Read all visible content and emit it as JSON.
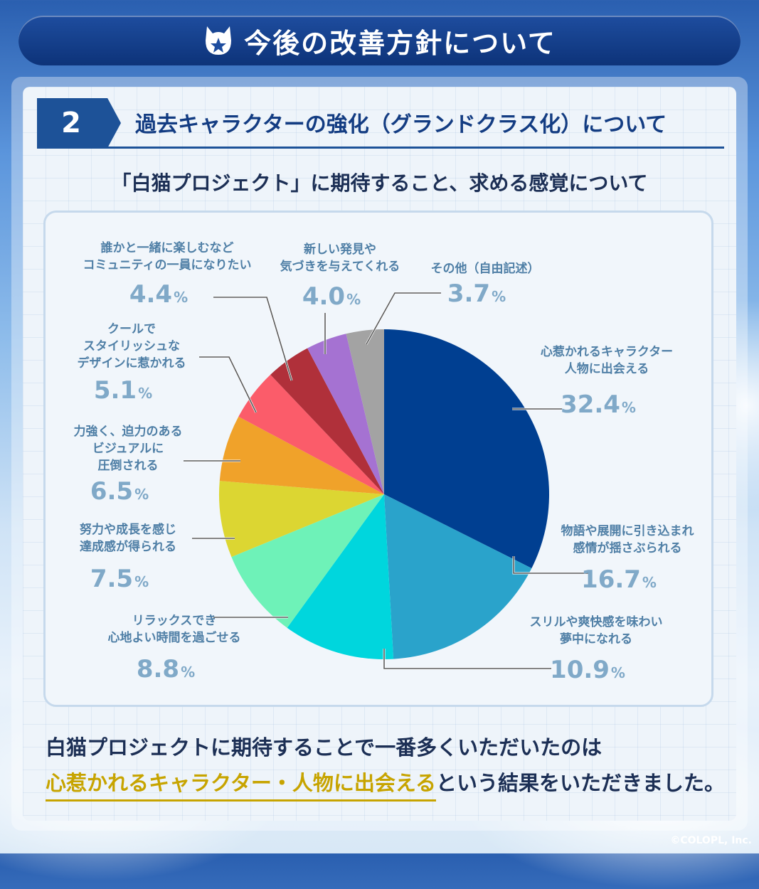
{
  "header": {
    "title": "今後の改善方針について"
  },
  "section": {
    "number": "2",
    "title": "過去キャラクターの強化（グランドクラス化）について"
  },
  "summary": {
    "line1": "白猫プロジェクトに期待することで一番多くいただいたのは",
    "highlight": "心惹かれるキャラクター・人物に出会える",
    "line2_rest": "という結果をいただきました。"
  },
  "copyright": "©COLOPL, Inc.",
  "chart_data": {
    "type": "pie",
    "title": "「白猫プロジェクト」に期待すること、求める感覚について",
    "unit": "%",
    "slices": [
      {
        "label": [
          "心惹かれるキャラクター",
          "人物に出会える"
        ],
        "value": 32.4,
        "color": "#003f91"
      },
      {
        "label": [
          "物語や展開に引き込まれ",
          "感情が揺さぶられる"
        ],
        "value": 16.7,
        "color": "#2aa3cb"
      },
      {
        "label": [
          "スリルや爽快感を味わい",
          "夢中になれる"
        ],
        "value": 10.9,
        "color": "#00d6dd"
      },
      {
        "label": [
          "リラックスでき",
          "心地よい時間を過ごせる"
        ],
        "value": 8.8,
        "color": "#6ef2b8"
      },
      {
        "label": [
          "努力や成長を感じ",
          "達成感が得られる"
        ],
        "value": 7.5,
        "color": "#dcd632"
      },
      {
        "label": [
          "力強く、迫力のある",
          "ビジュアルに",
          "圧倒される"
        ],
        "value": 6.5,
        "color": "#f0a22a"
      },
      {
        "label": [
          "クールで",
          "スタイリッシュな",
          "デザインに惹かれる"
        ],
        "value": 5.1,
        "color": "#fb5c6a"
      },
      {
        "label": [
          "誰かと一緒に楽しむなど",
          "コミュニティの一員になりたい"
        ],
        "value": 4.4,
        "color": "#b0303a"
      },
      {
        "label": [
          "新しい発見や",
          "気づきを与えてくれる"
        ],
        "value": 4.0,
        "color": "#a572d2"
      },
      {
        "label": [
          "その他（自由記述）"
        ],
        "value": 3.7,
        "color": "#a3a3a3"
      }
    ]
  }
}
